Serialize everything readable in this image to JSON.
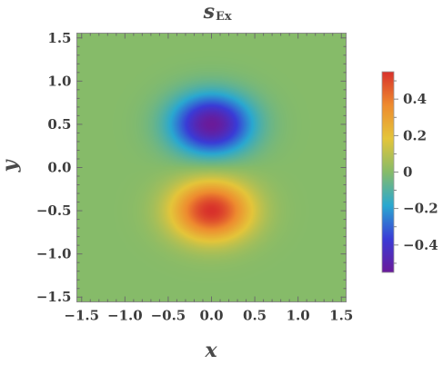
{
  "chart_data": {
    "type": "heatmap",
    "title": "s",
    "title_subscript": "Ex",
    "xlabel": "x",
    "ylabel": "y",
    "xlim": [
      -1.55,
      1.55
    ],
    "ylim": [
      -1.55,
      1.55
    ],
    "x_ticks": [
      {
        "value": -1.5,
        "label": "−1.5"
      },
      {
        "value": -1.0,
        "label": "−1.0"
      },
      {
        "value": -0.5,
        "label": "−0.5"
      },
      {
        "value": 0.0,
        "label": "0.0"
      },
      {
        "value": 0.5,
        "label": "0.5"
      },
      {
        "value": 1.0,
        "label": "1.0"
      },
      {
        "value": 1.5,
        "label": "1.5"
      }
    ],
    "y_ticks": [
      {
        "value": 1.5,
        "label": "1.5"
      },
      {
        "value": 1.0,
        "label": "1.0"
      },
      {
        "value": 0.5,
        "label": "0.5"
      },
      {
        "value": 0.0,
        "label": "0.0"
      },
      {
        "value": -0.5,
        "label": "−0.5"
      },
      {
        "value": -1.0,
        "label": "−1.0"
      },
      {
        "value": -1.5,
        "label": "−1.5"
      }
    ],
    "field": {
      "extrema": [
        {
          "x": 0.0,
          "y": 0.5,
          "value": -0.55
        },
        {
          "x": 0.0,
          "y": -0.5,
          "value": 0.55
        }
      ]
    },
    "colorbar": {
      "range": [
        -0.55,
        0.55
      ],
      "ticks": [
        {
          "value": 0.4,
          "label": "0.4"
        },
        {
          "value": 0.2,
          "label": "0.2"
        },
        {
          "value": 0.0,
          "label": "0"
        },
        {
          "value": -0.2,
          "label": "−0.2"
        },
        {
          "value": -0.4,
          "label": "−0.4"
        }
      ],
      "colors": [
        "#6a1b9a",
        "#3a3bd6",
        "#2aa8d0",
        "#86bb69",
        "#e4c53a",
        "#ee8b2f",
        "#d8312b"
      ]
    },
    "grid": false,
    "legend": "colorbar-right"
  }
}
